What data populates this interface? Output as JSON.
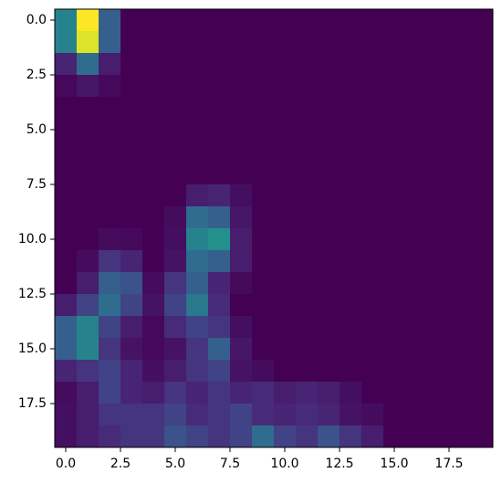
{
  "chart_data": {
    "type": "heatmap",
    "colormap": "viridis",
    "xlim": [
      -0.5,
      19.5
    ],
    "ylim": [
      19.5,
      -0.5
    ],
    "xticks": [
      {
        "value": 0,
        "label": "0.0"
      },
      {
        "value": 2.5,
        "label": "2.5"
      },
      {
        "value": 5,
        "label": "5.0"
      },
      {
        "value": 7.5,
        "label": "7.5"
      },
      {
        "value": 10,
        "label": "10.0"
      },
      {
        "value": 12.5,
        "label": "12.5"
      },
      {
        "value": 15,
        "label": "15.0"
      },
      {
        "value": 17.5,
        "label": "17.5"
      }
    ],
    "yticks": [
      {
        "value": 0,
        "label": "0.0"
      },
      {
        "value": 2.5,
        "label": "2.5"
      },
      {
        "value": 5,
        "label": "5.0"
      },
      {
        "value": 7.5,
        "label": "7.5"
      },
      {
        "value": 10,
        "label": "10.0"
      },
      {
        "value": 12.5,
        "label": "12.5"
      },
      {
        "value": 15,
        "label": "15.0"
      },
      {
        "value": 17.5,
        "label": "17.5"
      }
    ],
    "values": [
      [
        0.45,
        1.0,
        0.3,
        0,
        0,
        0,
        0,
        0,
        0,
        0,
        0,
        0,
        0,
        0,
        0,
        0,
        0,
        0,
        0,
        0
      ],
      [
        0.45,
        0.95,
        0.3,
        0,
        0,
        0,
        0,
        0,
        0,
        0,
        0,
        0,
        0,
        0,
        0,
        0,
        0,
        0,
        0,
        0
      ],
      [
        0.1,
        0.35,
        0.08,
        0,
        0,
        0,
        0,
        0,
        0,
        0,
        0,
        0,
        0,
        0,
        0,
        0,
        0,
        0,
        0,
        0
      ],
      [
        0.02,
        0.06,
        0.02,
        0,
        0,
        0,
        0,
        0,
        0,
        0,
        0,
        0,
        0,
        0,
        0,
        0,
        0,
        0,
        0,
        0
      ],
      [
        0,
        0,
        0,
        0,
        0,
        0,
        0,
        0,
        0,
        0,
        0,
        0,
        0,
        0,
        0,
        0,
        0,
        0,
        0,
        0
      ],
      [
        0,
        0,
        0,
        0,
        0,
        0,
        0,
        0,
        0,
        0,
        0,
        0,
        0,
        0,
        0,
        0,
        0,
        0,
        0,
        0
      ],
      [
        0,
        0,
        0,
        0,
        0,
        0,
        0,
        0,
        0,
        0,
        0,
        0,
        0,
        0,
        0,
        0,
        0,
        0,
        0,
        0
      ],
      [
        0,
        0,
        0,
        0,
        0,
        0,
        0,
        0,
        0,
        0,
        0,
        0,
        0,
        0,
        0,
        0,
        0,
        0,
        0,
        0
      ],
      [
        0,
        0,
        0,
        0,
        0,
        0,
        0.08,
        0.1,
        0.04,
        0,
        0,
        0,
        0,
        0,
        0,
        0,
        0,
        0,
        0,
        0
      ],
      [
        0,
        0,
        0,
        0,
        0,
        0.03,
        0.35,
        0.3,
        0.06,
        0,
        0,
        0,
        0,
        0,
        0,
        0,
        0,
        0,
        0,
        0
      ],
      [
        0,
        0,
        0.03,
        0.02,
        0,
        0.04,
        0.45,
        0.5,
        0.08,
        0,
        0,
        0,
        0,
        0,
        0,
        0,
        0,
        0,
        0,
        0
      ],
      [
        0,
        0.03,
        0.15,
        0.1,
        0,
        0.05,
        0.35,
        0.3,
        0.08,
        0,
        0,
        0,
        0,
        0,
        0,
        0,
        0,
        0,
        0,
        0
      ],
      [
        0,
        0.08,
        0.3,
        0.25,
        0.03,
        0.15,
        0.3,
        0.1,
        0.02,
        0,
        0,
        0,
        0,
        0,
        0,
        0,
        0,
        0,
        0,
        0
      ],
      [
        0.08,
        0.2,
        0.35,
        0.2,
        0.05,
        0.2,
        0.4,
        0.12,
        0,
        0,
        0,
        0,
        0,
        0,
        0,
        0,
        0,
        0,
        0,
        0
      ],
      [
        0.3,
        0.45,
        0.2,
        0.08,
        0.02,
        0.12,
        0.2,
        0.15,
        0.04,
        0,
        0,
        0,
        0,
        0,
        0,
        0,
        0,
        0,
        0,
        0
      ],
      [
        0.3,
        0.45,
        0.15,
        0.05,
        0.02,
        0.05,
        0.15,
        0.3,
        0.06,
        0,
        0,
        0,
        0,
        0,
        0,
        0,
        0,
        0,
        0,
        0
      ],
      [
        0.1,
        0.15,
        0.2,
        0.1,
        0.04,
        0.08,
        0.15,
        0.2,
        0.05,
        0.03,
        0,
        0,
        0,
        0,
        0,
        0,
        0,
        0,
        0,
        0
      ],
      [
        0.03,
        0.08,
        0.2,
        0.1,
        0.08,
        0.15,
        0.1,
        0.15,
        0.1,
        0.12,
        0.08,
        0.1,
        0.08,
        0.04,
        0,
        0,
        0,
        0,
        0,
        0
      ],
      [
        0.04,
        0.08,
        0.15,
        0.15,
        0.15,
        0.2,
        0.12,
        0.15,
        0.2,
        0.12,
        0.1,
        0.12,
        0.1,
        0.05,
        0.03,
        0,
        0,
        0,
        0,
        0
      ],
      [
        0.04,
        0.08,
        0.12,
        0.15,
        0.15,
        0.25,
        0.2,
        0.15,
        0.2,
        0.35,
        0.2,
        0.15,
        0.25,
        0.15,
        0.08,
        0,
        0,
        0,
        0,
        0
      ]
    ]
  }
}
